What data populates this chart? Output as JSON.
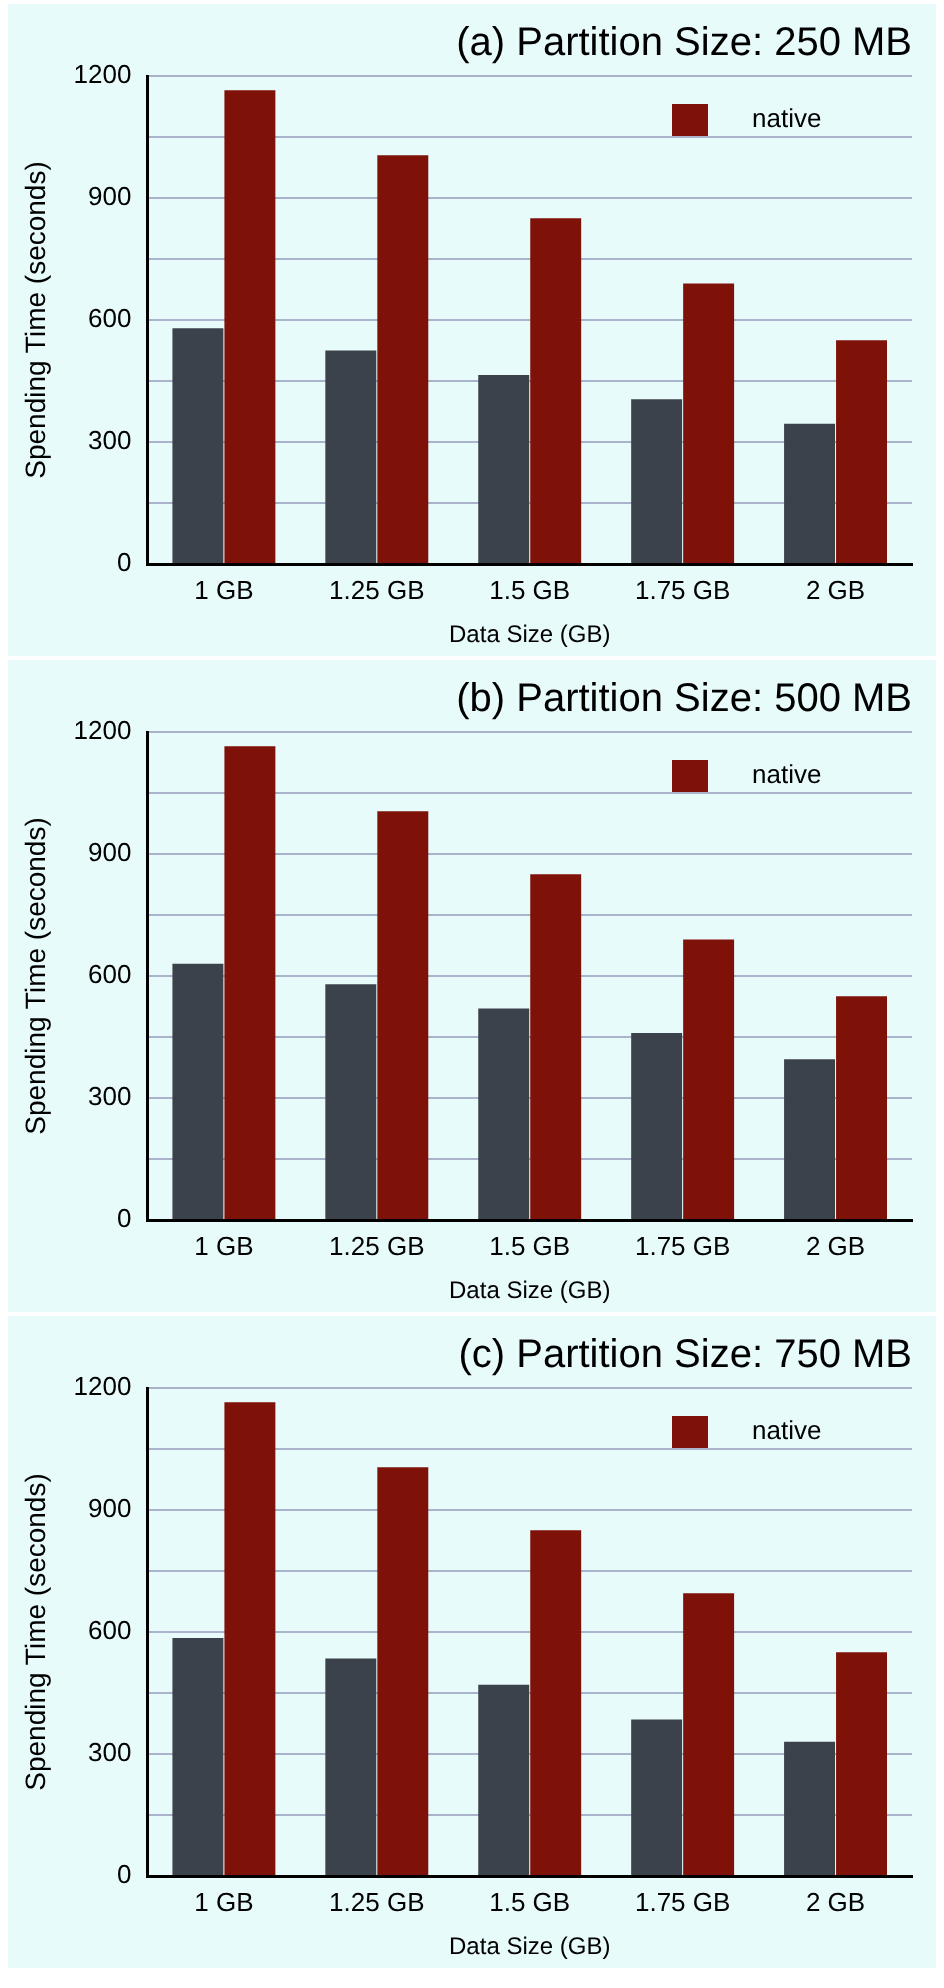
{
  "chart_data": [
    {
      "type": "bar",
      "title": "(a) Partition Size: 250 MB",
      "xlabel": "Data Size (GB)",
      "ylabel": "Spending Time (seconds)",
      "categories": [
        "1 GB",
        "1.25 GB",
        "1.5 GB",
        "1.75 GB",
        "2 GB"
      ],
      "series": [
        {
          "color": "#3c424b",
          "values": [
            580,
            525,
            465,
            405,
            345
          ]
        },
        {
          "name": "native",
          "color": "#7f1208",
          "values": [
            1165,
            1005,
            850,
            690,
            550
          ]
        }
      ],
      "ylim": [
        0,
        1200
      ],
      "yticks": [
        0,
        {
          "value": 150,
          "label": null
        },
        300,
        {
          "value": 450,
          "label": null
        },
        600,
        {
          "value": 750,
          "label": null
        },
        900,
        {
          "value": 1050,
          "label": null
        },
        1200
      ],
      "grid": "y",
      "legend": "top right"
    },
    {
      "type": "bar",
      "title": "(b) Partition Size: 500 MB",
      "xlabel": "Data Size (GB)",
      "ylabel": "Spending Time (seconds)",
      "categories": [
        "1 GB",
        "1.25 GB",
        "1.5 GB",
        "1.75 GB",
        "2 GB"
      ],
      "series": [
        {
          "color": "#3c424b",
          "values": [
            630,
            580,
            520,
            460,
            395
          ]
        },
        {
          "name": "native",
          "color": "#7f1208",
          "values": [
            1165,
            1005,
            850,
            690,
            550
          ]
        }
      ],
      "ylim": [
        0,
        1200
      ],
      "yticks": [
        0,
        {
          "value": 150,
          "label": null
        },
        300,
        {
          "value": 450,
          "label": null
        },
        600,
        {
          "value": 750,
          "label": null
        },
        900,
        {
          "value": 1050,
          "label": null
        },
        1200
      ],
      "grid": "y",
      "legend": "top right"
    },
    {
      "type": "bar",
      "title": "(c) Partition Size: 750 MB",
      "xlabel": "Data Size (GB)",
      "ylabel": "Spending Time (seconds)",
      "categories": [
        "1 GB",
        "1.25 GB",
        "1.5 GB",
        "1.75 GB",
        "2 GB"
      ],
      "series": [
        {
          "color": "#3c424b",
          "values": [
            585,
            535,
            470,
            385,
            330
          ]
        },
        {
          "name": "native",
          "color": "#7f1208",
          "values": [
            1165,
            1005,
            850,
            695,
            550
          ]
        }
      ],
      "ylim": [
        0,
        1200
      ],
      "yticks": [
        0,
        {
          "value": 150,
          "label": null
        },
        300,
        {
          "value": 450,
          "label": null
        },
        600,
        {
          "value": 750,
          "label": null
        },
        900,
        {
          "value": 1050,
          "label": null
        },
        1200
      ],
      "grid": "y",
      "legend": "top right"
    }
  ]
}
